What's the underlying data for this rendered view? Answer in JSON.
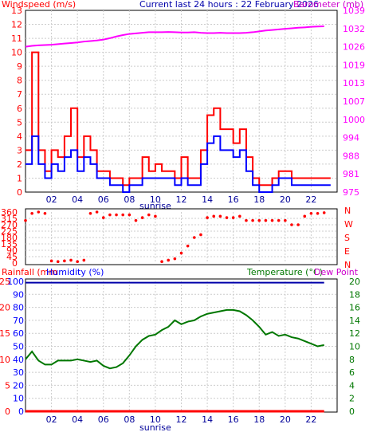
{
  "header": {
    "left_title": "Windspeed (m/s)",
    "center_title": "Current last 24 hours : 22 February 2026",
    "right_title": "Barometer (mb)",
    "rain_title": "Rainfall (mm",
    "humidity_title": "Humidity (%)",
    "temp_title": "Temperature (°C)",
    "dew_title": "Dew Point"
  },
  "colors": {
    "wind_gust": "#ff0000",
    "wind_avg": "#0000ff",
    "barometer": "#ff00ff",
    "direction": "#ff0000",
    "humidity": "#0000aa",
    "temperature": "#007700",
    "rainfall": "#ff0000",
    "left_axis_text": "#ff0000",
    "humidity_axis_text": "#0000ff",
    "temp_axis_text": "#007700"
  },
  "x_axis": {
    "labels": [
      "02",
      "04",
      "06",
      "08",
      "10",
      "12",
      "14",
      "16",
      "18",
      "20",
      "22"
    ],
    "sunrise_label": "sunrise"
  },
  "chart_data": [
    {
      "type": "line",
      "name": "wind-barometer",
      "ylabel_left": "Windspeed (m/s)",
      "ylabel_right": "Barometer (mb)",
      "y_left_ticks": [
        "0",
        "1",
        "2",
        "3",
        "4",
        "5",
        "6",
        "7",
        "8",
        "9",
        "10",
        "11",
        "12",
        "13"
      ],
      "y_right_ticks": [
        "975",
        "981",
        "988",
        "994",
        "1000",
        "1007",
        "1013",
        "1019",
        "1026",
        "1032",
        "1039"
      ],
      "x_hours": [
        0,
        0.5,
        1,
        1.5,
        2,
        2.5,
        3,
        3.5,
        4,
        4.5,
        5,
        5.5,
        6,
        6.5,
        7,
        7.5,
        8,
        8.5,
        9,
        9.5,
        10,
        10.5,
        11,
        11.5,
        12,
        12.5,
        13,
        13.5,
        14,
        14.5,
        15,
        15.5,
        16,
        16.5,
        17,
        17.5,
        18,
        18.5,
        19,
        19.5,
        20,
        20.5,
        21,
        21.5,
        22,
        22.5,
        23
      ],
      "series": [
        {
          "name": "gust",
          "values": [
            3,
            10,
            3,
            1.5,
            3,
            2.5,
            4,
            6,
            2.5,
            4,
            3,
            1.5,
            1.5,
            1,
            1,
            0.5,
            1,
            1,
            2.5,
            1.5,
            2,
            1.5,
            1.5,
            1,
            2.5,
            1,
            1,
            3,
            5.5,
            6,
            4.5,
            4.5,
            3.5,
            4.5,
            2.5,
            1,
            0.5,
            0.5,
            1,
            1.5,
            1.5,
            1,
            1,
            1,
            1,
            1,
            1
          ]
        },
        {
          "name": "average",
          "values": [
            2,
            4,
            2,
            1,
            2,
            1.5,
            2.5,
            3,
            1.5,
            2.5,
            2,
            1,
            1,
            0.5,
            0.5,
            0,
            0.5,
            0.5,
            1,
            1,
            1,
            1,
            1,
            0.5,
            1,
            0.5,
            0.5,
            2,
            3.5,
            4,
            3,
            3,
            2.5,
            3,
            1.5,
            0.5,
            0,
            0,
            0.5,
            1,
            1,
            0.5,
            0.5,
            0.5,
            0.5,
            0.5,
            0.5
          ]
        },
        {
          "name": "barometer",
          "values": [
            1026.2,
            1026.5,
            1026.7,
            1026.8,
            1026.9,
            1027.1,
            1027.3,
            1027.5,
            1027.7,
            1028,
            1028.2,
            1028.4,
            1028.7,
            1029.2,
            1029.8,
            1030.3,
            1030.7,
            1030.9,
            1031.1,
            1031.3,
            1031.3,
            1031.3,
            1031.4,
            1031.3,
            1031.2,
            1031.2,
            1031.3,
            1031.1,
            1031.0,
            1031.0,
            1031.1,
            1031.0,
            1031.0,
            1031.0,
            1031.1,
            1031.3,
            1031.6,
            1031.9,
            1032.1,
            1032.3,
            1032.5,
            1032.7,
            1032.9,
            1033.0,
            1033.2,
            1033.3,
            1033.4
          ]
        }
      ]
    },
    {
      "type": "scatter",
      "name": "wind-direction",
      "y_left_ticks": [
        "0",
        "45",
        "90",
        "135",
        "180",
        "225",
        "270",
        "315",
        "360"
      ],
      "y_right_ticks": [
        "N",
        "E",
        "S",
        "W",
        "N"
      ],
      "x_hours": [
        0,
        0.5,
        1,
        1.5,
        2,
        2.5,
        3,
        3.5,
        4,
        4.5,
        5,
        5.5,
        6,
        6.5,
        7,
        7.5,
        8,
        8.5,
        9,
        9.5,
        10,
        10.5,
        11,
        11.5,
        12,
        12.5,
        13,
        13.5,
        14,
        14.5,
        15,
        15.5,
        16,
        16.5,
        17,
        17.5,
        18,
        18.5,
        19,
        19.5,
        20,
        20.5,
        21,
        21.5,
        22,
        22.5,
        23
      ],
      "values": [
        300,
        350,
        360,
        350,
        15,
        10,
        15,
        20,
        10,
        20,
        350,
        360,
        320,
        340,
        340,
        340,
        340,
        300,
        320,
        340,
        330,
        10,
        20,
        30,
        70,
        120,
        180,
        200,
        320,
        330,
        330,
        320,
        320,
        330,
        300,
        300,
        300,
        300,
        300,
        300,
        300,
        270,
        270,
        330,
        350,
        350,
        355
      ]
    },
    {
      "type": "line",
      "name": "rain-humidity-temperature",
      "y_rain_ticks": [
        "0",
        "5",
        "10",
        "15",
        "20",
        "25"
      ],
      "y_humidity_ticks": [
        "0",
        "10",
        "20",
        "30",
        "40",
        "50",
        "60",
        "70",
        "80",
        "90",
        "100"
      ],
      "y_temp_ticks": [
        "0",
        "2",
        "4",
        "6",
        "8",
        "10",
        "12",
        "14",
        "16",
        "18",
        "20"
      ],
      "x_hours": [
        0,
        0.5,
        1,
        1.5,
        2,
        2.5,
        3,
        3.5,
        4,
        4.5,
        5,
        5.5,
        6,
        6.5,
        7,
        7.5,
        8,
        8.5,
        9,
        9.5,
        10,
        10.5,
        11,
        11.5,
        12,
        12.5,
        13,
        13.5,
        14,
        14.5,
        15,
        15.5,
        16,
        16.5,
        17,
        17.5,
        18,
        18.5,
        19,
        19.5,
        20,
        20.5,
        21,
        21.5,
        22,
        22.5,
        23
      ],
      "series": [
        {
          "name": "temperature",
          "values": [
            8,
            9.2,
            7.8,
            7.2,
            7.2,
            7.8,
            7.8,
            7.8,
            8,
            7.8,
            7.6,
            7.8,
            7,
            6.6,
            6.8,
            7.4,
            8.6,
            10,
            11,
            11.6,
            11.8,
            12.5,
            13,
            14,
            13.4,
            13.8,
            14,
            14.6,
            15,
            15.2,
            15.4,
            15.6,
            15.6,
            15.4,
            14.8,
            14,
            13,
            11.8,
            12.2,
            11.6,
            11.8,
            11.4,
            11.2,
            10.8,
            10.4,
            10,
            10.2
          ]
        },
        {
          "name": "humidity",
          "values": [
            99,
            99,
            99,
            99,
            99,
            99,
            99,
            99,
            99,
            99,
            99,
            99,
            99,
            99,
            99,
            99,
            99,
            99,
            99,
            99,
            99,
            99,
            99,
            99,
            99,
            99,
            99,
            99,
            99,
            99,
            99,
            99,
            99,
            99,
            99,
            99,
            99,
            99,
            99,
            99,
            99,
            99,
            99,
            99,
            99,
            99,
            99
          ]
        },
        {
          "name": "rainfall",
          "values": [
            0,
            0,
            0,
            0,
            0,
            0,
            0,
            0,
            0,
            0,
            0,
            0,
            0,
            0,
            0,
            0,
            0,
            0,
            0,
            0,
            0,
            0,
            0,
            0,
            0,
            0,
            0,
            0,
            0,
            0,
            0,
            0,
            0,
            0,
            0,
            0,
            0,
            0,
            0,
            0,
            0,
            0,
            0,
            0,
            0,
            0,
            0
          ]
        }
      ]
    }
  ]
}
